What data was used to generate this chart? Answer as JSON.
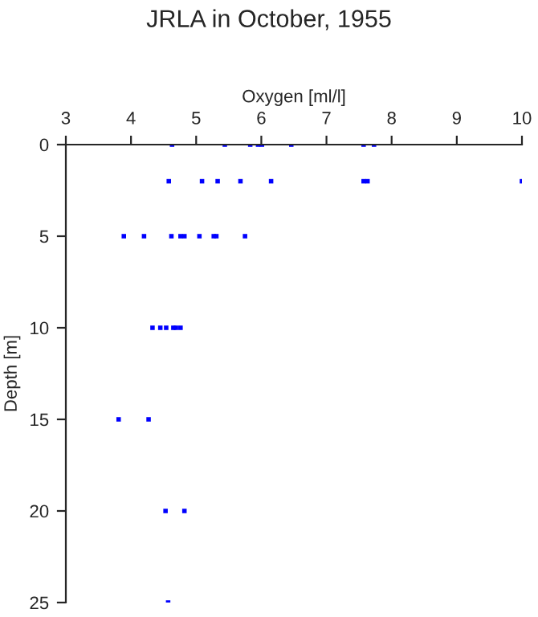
{
  "chart_data": {
    "type": "scatter",
    "title": "JRLA in October, 1955",
    "xlabel": "Oxygen [ml/l]",
    "ylabel": "Depth [m]",
    "x": [
      4.63,
      5.44,
      5.83,
      5.95,
      6.01,
      6.46,
      7.57,
      7.73,
      4.58,
      5.09,
      5.33,
      5.68,
      6.15,
      7.57,
      7.63,
      10.0,
      3.89,
      4.2,
      4.62,
      4.76,
      4.82,
      5.05,
      5.27,
      5.31,
      5.75,
      4.33,
      4.45,
      4.54,
      4.65,
      4.69,
      4.76,
      3.81,
      4.27,
      4.53,
      4.82,
      4.57
    ],
    "series": [
      {
        "color": "#0000ff",
        "values": [
          0,
          0,
          0,
          0,
          0,
          0,
          0,
          0,
          2,
          2,
          2,
          2,
          2,
          2,
          2,
          2,
          5,
          5,
          5,
          5,
          5,
          5,
          5,
          5,
          5,
          10,
          10,
          10,
          10,
          10,
          10,
          15,
          15,
          20,
          20,
          25
        ]
      }
    ],
    "xlim": [
      3,
      10
    ],
    "xticks": [
      3,
      4,
      5,
      6,
      7,
      8,
      9,
      10
    ],
    "ylim": [
      25,
      0
    ],
    "yticks": [
      0,
      5,
      10,
      15,
      20,
      25
    ],
    "marker": "square",
    "grid": false,
    "legend": false
  }
}
